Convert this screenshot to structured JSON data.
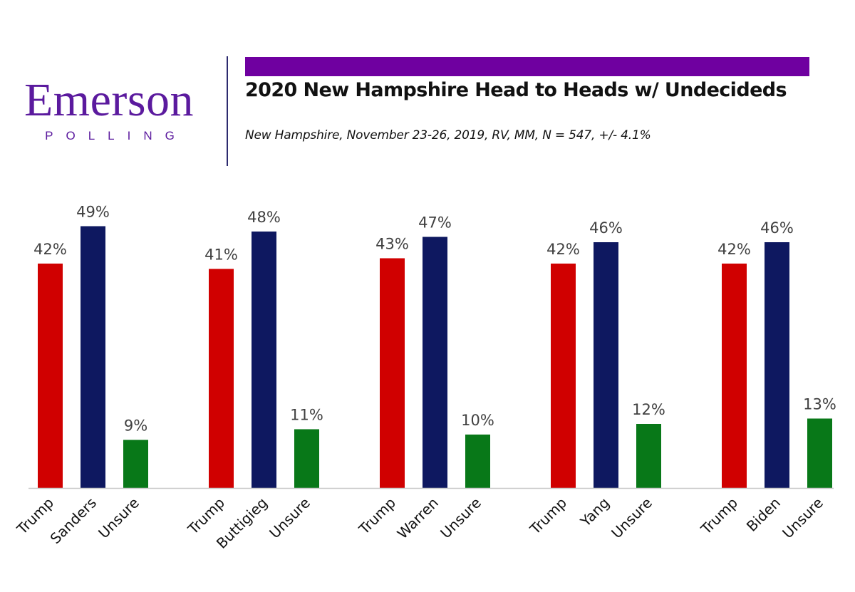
{
  "logo": {
    "word": "Emerson",
    "sub": "POLLING"
  },
  "header": {
    "title": "2020 New Hampshire Head to Heads w/ Undecideds",
    "subtitle": "New Hampshire, November 23-26, 2019, RV, MM, N = 547,  +/- 4.1%"
  },
  "colors": {
    "brand_purple": "#6f00a0",
    "logo_purple": "#5b1a9e",
    "trump": "#d00000",
    "democrat": "#0e1860",
    "unsure": "#087818",
    "axis": "#c8c8c8",
    "divider": "#2c2a6e"
  },
  "chart_data": {
    "type": "bar",
    "title": "2020 New Hampshire Head to Heads w/ Undecideds",
    "ylim": [
      0,
      60
    ],
    "grid": false,
    "legend": "none",
    "value_suffix": "%",
    "groups": [
      {
        "bars": [
          {
            "label": "Trump",
            "value": 42,
            "party": "trump"
          },
          {
            "label": "Sanders",
            "value": 49,
            "party": "democrat"
          },
          {
            "label": "Unsure",
            "value": 9,
            "party": "unsure"
          }
        ]
      },
      {
        "bars": [
          {
            "label": "Trump",
            "value": 41,
            "party": "trump"
          },
          {
            "label": "Buttigieg",
            "value": 48,
            "party": "democrat"
          },
          {
            "label": "Unsure",
            "value": 11,
            "party": "unsure"
          }
        ]
      },
      {
        "bars": [
          {
            "label": "Trump",
            "value": 43,
            "party": "trump"
          },
          {
            "label": "Warren",
            "value": 47,
            "party": "democrat"
          },
          {
            "label": "Unsure",
            "value": 10,
            "party": "unsure"
          }
        ]
      },
      {
        "bars": [
          {
            "label": "Trump",
            "value": 42,
            "party": "trump"
          },
          {
            "label": "Yang",
            "value": 46,
            "party": "democrat"
          },
          {
            "label": "Unsure",
            "value": 12,
            "party": "unsure"
          }
        ]
      },
      {
        "bars": [
          {
            "label": "Trump",
            "value": 42,
            "party": "trump"
          },
          {
            "label": "Biden",
            "value": 46,
            "party": "democrat"
          },
          {
            "label": "Unsure",
            "value": 13,
            "party": "unsure"
          }
        ]
      }
    ]
  }
}
